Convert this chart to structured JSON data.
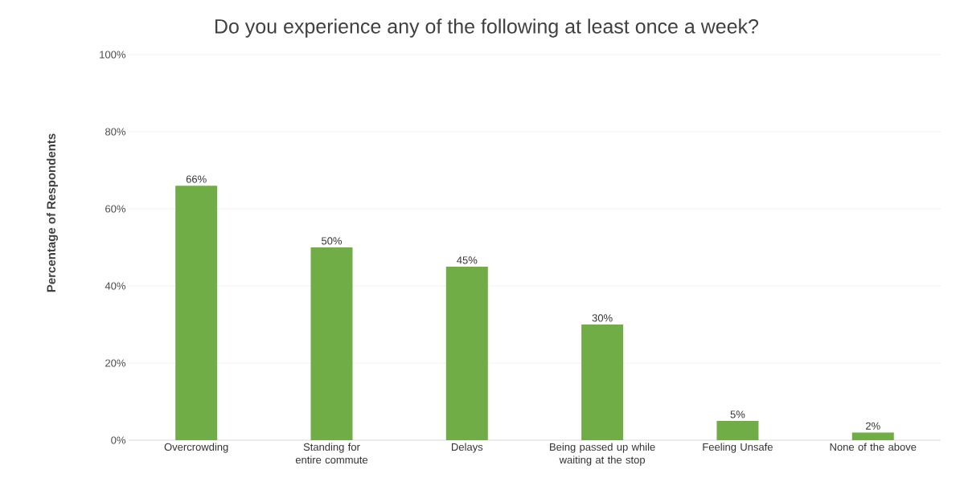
{
  "chart_data": {
    "type": "bar",
    "title": "Do you experience any of the following at least once a week?",
    "ylabel": "Percentage of Respondents",
    "categories": [
      "Overcrowding",
      "Standing for entire commute",
      "Delays",
      "Being passed up while waiting at the stop",
      "Feeling Unsafe",
      "None of the above"
    ],
    "values": [
      66,
      50,
      45,
      30,
      5,
      2
    ],
    "value_labels": [
      "66%",
      "50%",
      "45%",
      "30%",
      "5%",
      "2%"
    ],
    "color": "#70ad47",
    "ylim": [
      0,
      100
    ],
    "yticks": [
      {
        "value": 0,
        "label": "0%"
      },
      {
        "value": 20,
        "label": "20%"
      },
      {
        "value": 40,
        "label": "40%"
      },
      {
        "value": 60,
        "label": "60%"
      },
      {
        "value": 80,
        "label": "80%"
      },
      {
        "value": 100,
        "label": "100%"
      }
    ],
    "grid": "y"
  }
}
